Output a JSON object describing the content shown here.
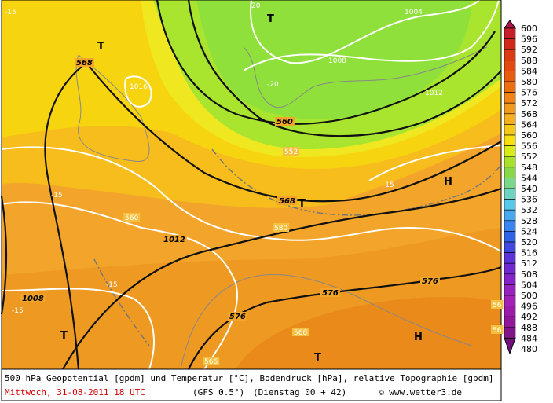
{
  "map": {
    "labels": [
      "-15",
      "20",
      "T",
      "1004",
      "568",
      "T",
      "1008",
      "-20",
      "1016",
      "1012",
      "560",
      "552",
      "568",
      "T",
      "-15",
      "H",
      "-15",
      "560",
      "580",
      "1012",
      "-15",
      "576",
      "576",
      "1008",
      "-15",
      "576",
      "568",
      "T",
      "H",
      "T",
      "566",
      "56",
      "56"
    ]
  },
  "colorbar": {
    "labels": [
      600,
      596,
      592,
      588,
      584,
      580,
      576,
      572,
      568,
      564,
      560,
      556,
      552,
      548,
      544,
      540,
      536,
      532,
      528,
      524,
      520,
      516,
      512,
      508,
      504,
      500,
      496,
      492,
      488,
      484,
      480
    ]
  },
  "footer": {
    "description": "500 hPa Geopotential [gpdm] und Temperatur [°C], Bodendruck [hPa], relative Topographie [gpdm]",
    "date": "Mittwoch, 31-08-2011  18 UTC",
    "model": "(GFS 0.5°)",
    "run": "(Dienstag 00 + 42)",
    "credit": "© www.wetter3.de"
  }
}
